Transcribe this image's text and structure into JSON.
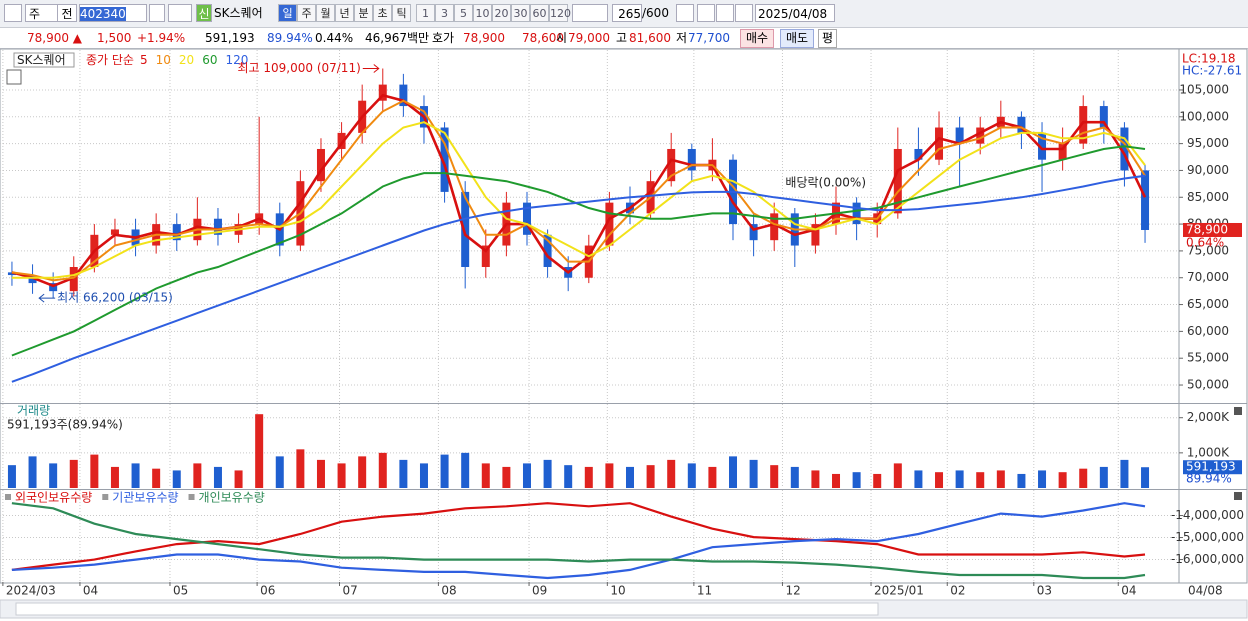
{
  "toolbar": {
    "market": "주",
    "prev": "전",
    "code": "402340",
    "tag": "신",
    "name": "SK스퀘어",
    "periods": [
      "일",
      "주",
      "월",
      "년",
      "분",
      "초",
      "틱"
    ],
    "intervals": [
      "1",
      "3",
      "5",
      "10",
      "20",
      "30",
      "60",
      "120"
    ],
    "count": "265",
    "max": "/600",
    "date": "2025/04/08"
  },
  "info": {
    "price": "78,900 ▲",
    "change": "1,500",
    "rate": "+1.94%",
    "volume": "591,193",
    "volume_rate": "89.94%",
    "turnover": "0.44%",
    "amount": "46,967백만",
    "quote_label": "호가",
    "ask": "78,900",
    "bid": "78,600",
    "open_label": "시",
    "open": "79,000",
    "high_label": "고",
    "high": "81,600",
    "low_label": "저",
    "low": "77,700",
    "buy": "매수",
    "sell": "매도",
    "avg": "평"
  },
  "chart_data": [
    {
      "type": "candlestick",
      "title": "SK스퀘어",
      "legend_title": "종가 단순",
      "lc": "LC:19.18",
      "hc": "HC:-27.61",
      "price_tag": "78,900",
      "price_tag_change": "0.64%",
      "up_color": "#e0231f",
      "down_color": "#1f5fd0",
      "x": [
        0,
        1,
        2,
        3,
        4,
        5,
        6,
        7,
        8,
        9,
        10,
        11,
        12,
        13,
        14,
        15,
        16,
        17,
        18,
        19,
        20,
        21,
        22,
        23,
        24,
        25,
        26,
        27,
        28,
        29,
        30,
        31,
        32,
        33,
        34,
        35,
        36,
        37,
        38,
        39,
        40,
        41,
        42,
        43,
        44,
        45,
        46,
        47,
        48,
        49,
        50,
        51,
        52,
        53,
        54,
        55
      ],
      "open": [
        71000,
        70500,
        69000,
        67500,
        72000,
        78000,
        79000,
        76000,
        80000,
        77000,
        81000,
        78000,
        80000,
        82000,
        76000,
        88000,
        94000,
        97000,
        103000,
        106000,
        102000,
        98000,
        86000,
        72000,
        76000,
        84000,
        78000,
        72000,
        70000,
        76000,
        84000,
        82000,
        88000,
        94000,
        90000,
        92000,
        80000,
        77000,
        82000,
        76000,
        80000,
        84000,
        80000,
        82000,
        94000,
        92000,
        98000,
        95000,
        98000,
        100000,
        97000,
        92000,
        95000,
        102000,
        98000,
        90000
      ],
      "high": [
        73000,
        72500,
        71000,
        74000,
        80000,
        81000,
        81000,
        82000,
        82000,
        85000,
        83000,
        82000,
        100000,
        84000,
        90000,
        96000,
        99000,
        106000,
        109000,
        108000,
        104000,
        99000,
        88000,
        79000,
        86000,
        86000,
        79000,
        74000,
        78000,
        86000,
        87000,
        90000,
        97000,
        95000,
        96000,
        93000,
        82000,
        84000,
        83000,
        82000,
        87000,
        85000,
        84000,
        98000,
        98000,
        101000,
        100000,
        100000,
        103000,
        101000,
        99000,
        98000,
        104000,
        103000,
        99000,
        91000
      ],
      "low": [
        68500,
        67000,
        66200,
        66500,
        71000,
        76000,
        74000,
        74500,
        75000,
        76000,
        76000,
        76500,
        78000,
        74000,
        75000,
        86000,
        92000,
        95000,
        101000,
        100000,
        95000,
        84000,
        68000,
        70000,
        74000,
        76000,
        70000,
        67500,
        69000,
        75000,
        80000,
        81000,
        87000,
        88000,
        88000,
        77000,
        74000,
        75000,
        72000,
        74500,
        78000,
        77000,
        77500,
        81000,
        89000,
        91000,
        87000,
        93000,
        96000,
        94000,
        86000,
        90000,
        94000,
        95000,
        87000,
        76500
      ],
      "close": [
        70500,
        69000,
        67500,
        72000,
        78000,
        79000,
        76000,
        80000,
        77000,
        81000,
        78000,
        80000,
        82000,
        76000,
        88000,
        94000,
        97000,
        103000,
        106000,
        102000,
        98000,
        86000,
        72000,
        76000,
        84000,
        78000,
        72000,
        70000,
        76000,
        84000,
        82000,
        88000,
        94000,
        90000,
        92000,
        80000,
        77000,
        82000,
        76000,
        80000,
        84000,
        80000,
        82000,
        94000,
        92000,
        98000,
        95000,
        98000,
        100000,
        97000,
        92000,
        95000,
        102000,
        98000,
        90000,
        78900
      ],
      "series": [
        {
          "name": "5",
          "color": "#d81010",
          "values": [
            71000,
            70000,
            68500,
            70000,
            75000,
            78000,
            77500,
            78500,
            78000,
            79500,
            79000,
            79500,
            81000,
            79000,
            84000,
            90000,
            95000,
            100000,
            104000,
            103000,
            100000,
            91000,
            78000,
            75000,
            80000,
            80000,
            74000,
            71000,
            74000,
            81000,
            83000,
            86000,
            92000,
            91000,
            91000,
            84000,
            79000,
            80000,
            78000,
            79000,
            82000,
            81000,
            81000,
            90000,
            92000,
            96000,
            95000,
            97000,
            99000,
            98000,
            94000,
            94000,
            99000,
            99000,
            93000,
            85000
          ]
        },
        {
          "name": "10",
          "color": "#f08a10",
          "values": [
            71000,
            70500,
            69500,
            70000,
            73000,
            76000,
            77000,
            78000,
            78000,
            79000,
            79000,
            79500,
            80000,
            79500,
            82000,
            87000,
            92000,
            97000,
            101000,
            103000,
            101000,
            95000,
            85000,
            78000,
            78000,
            80000,
            77000,
            73000,
            73000,
            78000,
            82000,
            85000,
            89000,
            91000,
            91000,
            87000,
            82000,
            80000,
            79000,
            79000,
            81000,
            81000,
            81000,
            86000,
            90000,
            94000,
            95000,
            96000,
            98000,
            98000,
            96000,
            95000,
            97000,
            98000,
            95000,
            89000
          ]
        },
        {
          "name": "20",
          "color": "#f2e21a",
          "values": [
            70000,
            70000,
            70000,
            70500,
            72000,
            74000,
            76000,
            77000,
            77500,
            78000,
            78500,
            79000,
            79500,
            79500,
            80500,
            83000,
            87000,
            91000,
            95000,
            98000,
            99000,
            97000,
            91000,
            85000,
            81000,
            80000,
            78000,
            76000,
            74000,
            76000,
            79000,
            82000,
            85000,
            88000,
            89000,
            88000,
            86000,
            83000,
            80000,
            79000,
            80000,
            81000,
            80000,
            83000,
            86000,
            89000,
            92000,
            94000,
            96000,
            97000,
            97000,
            96000,
            96000,
            97000,
            96000,
            91000
          ]
        },
        {
          "name": "60",
          "color": "#1f9a2e",
          "values": [
            55500,
            57000,
            58500,
            60000,
            62000,
            64000,
            66000,
            68000,
            69500,
            71000,
            72000,
            73500,
            75000,
            76500,
            78000,
            80000,
            82000,
            84500,
            87000,
            88500,
            89500,
            89500,
            89000,
            88500,
            88000,
            87000,
            86000,
            84500,
            83000,
            82000,
            81500,
            81000,
            81000,
            81500,
            82000,
            82000,
            81500,
            81000,
            81000,
            81500,
            82000,
            82500,
            83000,
            84000,
            85000,
            86000,
            87000,
            88000,
            89000,
            90000,
            91000,
            92000,
            93000,
            94000,
            94500,
            94000
          ]
        },
        {
          "name": "120",
          "color": "#2f5fe0",
          "values": [
            50600,
            52000,
            53500,
            55000,
            56400,
            57800,
            59200,
            60600,
            62000,
            63400,
            64800,
            66200,
            67600,
            69000,
            70400,
            71800,
            73200,
            74600,
            76000,
            77400,
            78800,
            80000,
            81000,
            81800,
            82400,
            83000,
            83400,
            83800,
            84200,
            84600,
            85000,
            85300,
            85600,
            85900,
            86000,
            86000,
            85600,
            85000,
            84500,
            84000,
            83500,
            83000,
            82600,
            82600,
            82800,
            83200,
            83600,
            84000,
            84500,
            85000,
            85600,
            86300,
            87000,
            87800,
            88500,
            89000
          ]
        }
      ],
      "annotations": [
        {
          "text": "최고 109,000 (07/11)",
          "x": 18,
          "y": 109000,
          "color": "#d81010",
          "side": "left"
        },
        {
          "text": "최저 66,200 (03/15)",
          "x": 2,
          "y": 66200,
          "color": "#1f4fb0",
          "side": "right"
        },
        {
          "text": "배당락(0.00%)",
          "x": 39.5,
          "y": 87700,
          "color": "#222222",
          "side": "center"
        }
      ],
      "xlim": [
        -0.58,
        56.6
      ],
      "ylim": [
        46650,
        112450
      ],
      "yticks": [
        {
          "value": 50000,
          "label": "50,000"
        },
        {
          "value": 55000,
          "label": "55,000"
        },
        {
          "value": 60000,
          "label": "60,000"
        },
        {
          "value": 65000,
          "label": "65,000"
        },
        {
          "value": 70000,
          "label": "70,000"
        },
        {
          "value": 75000,
          "label": "75,000"
        },
        {
          "value": 80000,
          "label": "80,000"
        },
        {
          "value": 85000,
          "label": "85,000"
        },
        {
          "value": 90000,
          "label": "90,000"
        },
        {
          "value": 95000,
          "label": "95,000"
        },
        {
          "value": 100000,
          "label": "100,000"
        },
        {
          "value": 105000,
          "label": "105,000"
        }
      ],
      "grid": true
    },
    {
      "type": "bar",
      "title": "거래량",
      "subtitle": "591,193주(89.94%)",
      "tag": "591,193",
      "tag_rate": "89.94%",
      "x": [
        0,
        1,
        2,
        3,
        4,
        5,
        6,
        7,
        8,
        9,
        10,
        11,
        12,
        13,
        14,
        15,
        16,
        17,
        18,
        19,
        20,
        21,
        22,
        23,
        24,
        25,
        26,
        27,
        28,
        29,
        30,
        31,
        32,
        33,
        34,
        35,
        36,
        37,
        38,
        39,
        40,
        41,
        42,
        43,
        44,
        45,
        46,
        47,
        48,
        49,
        50,
        51,
        52,
        53,
        54,
        55
      ],
      "values": [
        650000,
        900000,
        700000,
        800000,
        950000,
        600000,
        700000,
        550000,
        500000,
        700000,
        600000,
        500000,
        2100000,
        900000,
        1100000,
        800000,
        700000,
        900000,
        1000000,
        800000,
        700000,
        950000,
        1000000,
        700000,
        600000,
        700000,
        800000,
        650000,
        600000,
        700000,
        600000,
        650000,
        800000,
        700000,
        600000,
        900000,
        800000,
        650000,
        600000,
        500000,
        400000,
        450000,
        400000,
        700000,
        500000,
        450000,
        500000,
        450000,
        500000,
        400000,
        500000,
        450000,
        550000,
        600000,
        800000,
        591193
      ],
      "xlim": [
        -0.58,
        56.6
      ],
      "ylim": [
        0,
        2390000
      ],
      "yticks": [
        {
          "value": 1000000,
          "label": "1,000K"
        },
        {
          "value": 2000000,
          "label": "2,000K"
        }
      ],
      "grid": true
    },
    {
      "type": "line",
      "end_label": "04/08",
      "x": [
        0,
        2,
        4,
        6,
        8,
        10,
        12,
        14,
        16,
        18,
        20,
        22,
        24,
        26,
        28,
        30,
        32,
        34,
        36,
        38,
        40,
        42,
        44,
        46,
        48,
        50,
        52,
        54,
        55
      ],
      "series": [
        {
          "name": "외국인보유수량",
          "color": "#d81010",
          "values": [
            -16470000,
            -16230000,
            -16000000,
            -15630000,
            -15300000,
            -15160000,
            -15300000,
            -14840000,
            -14280000,
            -14050000,
            -13910000,
            -13670000,
            -13580000,
            -13440000,
            -13580000,
            -13440000,
            -14050000,
            -14600000,
            -14980000,
            -15070000,
            -15160000,
            -15300000,
            -15770000,
            -15770000,
            -15770000,
            -15770000,
            -15670000,
            -15860000,
            -15770000
          ]
        },
        {
          "name": "기관보유수량",
          "color": "#2f5fe0",
          "values": [
            -16470000,
            -16370000,
            -16230000,
            -16000000,
            -15770000,
            -15770000,
            -16000000,
            -16090000,
            -16370000,
            -16470000,
            -16560000,
            -16560000,
            -16700000,
            -16840000,
            -16700000,
            -16470000,
            -16000000,
            -15440000,
            -15300000,
            -15160000,
            -15070000,
            -15160000,
            -14840000,
            -14370000,
            -13910000,
            -14050000,
            -13770000,
            -13440000,
            -13580000
          ]
        },
        {
          "name": "개인보유수량",
          "color": "#2e8b57",
          "values": [
            -13440000,
            -13670000,
            -14370000,
            -14840000,
            -15070000,
            -15300000,
            -15530000,
            -15770000,
            -15910000,
            -15910000,
            -16000000,
            -16000000,
            -16000000,
            -16000000,
            -16090000,
            -16000000,
            -16000000,
            -16090000,
            -16090000,
            -16140000,
            -16230000,
            -16370000,
            -16560000,
            -16700000,
            -16700000,
            -16700000,
            -16840000,
            -16840000,
            -16700000
          ]
        }
      ],
      "xlim": [
        -0.58,
        56.6
      ],
      "ylim": [
        -17020000,
        -12840000
      ],
      "yticks": [
        {
          "value": -16000000,
          "label": "-16,000,000"
        },
        {
          "value": -15000000,
          "label": "-15,000,000"
        },
        {
          "value": -14000000,
          "label": "-14,000,000"
        }
      ],
      "xticks": [
        {
          "value": -0.44,
          "label": "2024/03"
        },
        {
          "value": 3.3,
          "label": "04"
        },
        {
          "value": 7.67,
          "label": "05"
        },
        {
          "value": 11.9,
          "label": "06"
        },
        {
          "value": 15.9,
          "label": "07"
        },
        {
          "value": 20.7,
          "label": "08"
        },
        {
          "value": 25.1,
          "label": "09"
        },
        {
          "value": 28.9,
          "label": "10"
        },
        {
          "value": 33.1,
          "label": "11"
        },
        {
          "value": 37.4,
          "label": "12"
        },
        {
          "value": 41.7,
          "label": "2025/01"
        },
        {
          "value": 45.4,
          "label": "02"
        },
        {
          "value": 49.6,
          "label": "03"
        },
        {
          "value": 53.7,
          "label": "04"
        }
      ],
      "grid": true
    }
  ]
}
